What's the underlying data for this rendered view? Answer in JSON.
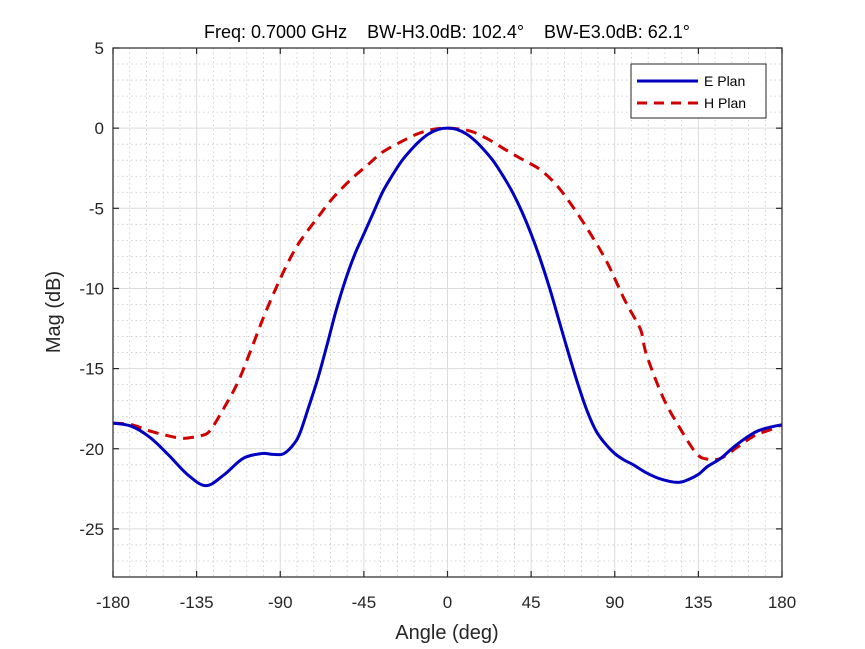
{
  "chart_data": {
    "type": "line",
    "title": "Freq: 0.7000 GHz    BW-H3.0dB: 102.4°    BW-E3.0dB: 62.1°",
    "xlabel": "Angle (deg)",
    "ylabel": "Mag (dB)",
    "xlim": [
      -180,
      180
    ],
    "ylim": [
      -28,
      5
    ],
    "xticks": [
      -180,
      -135,
      -90,
      -45,
      0,
      45,
      90,
      135,
      180
    ],
    "yticks": [
      5,
      0,
      -5,
      -10,
      -15,
      -20,
      -25
    ],
    "xtick_labels": [
      "-180",
      "-135",
      "-90",
      "-45",
      "0",
      "45",
      "90",
      "135",
      "180"
    ],
    "ytick_labels": [
      "5",
      "0",
      "-5",
      "-10",
      "-15",
      "-20",
      "-25"
    ],
    "grid": true,
    "minor_grid": true,
    "legend_position": "top-right",
    "series": [
      {
        "name": "E Plan",
        "color": "#0000C0",
        "style": "solid",
        "x": [
          -180,
          -170,
          -160,
          -150,
          -140,
          -130,
          -120,
          -110,
          -100,
          -94,
          -88,
          -82,
          -79,
          -75,
          -70,
          -65,
          -60,
          -55,
          -50,
          -45,
          -40,
          -35,
          -30,
          -25,
          -20,
          -15,
          -10,
          -5,
          0,
          5,
          10,
          15,
          20,
          25,
          30,
          35,
          40,
          45,
          50,
          55,
          60,
          65,
          70,
          75,
          80,
          85,
          90,
          95,
          100,
          107,
          115,
          124,
          130,
          135,
          140,
          147,
          155,
          165,
          172,
          180
        ],
        "y": [
          -18.4,
          -18.6,
          -19.3,
          -20.4,
          -21.6,
          -22.3,
          -21.6,
          -20.6,
          -20.3,
          -20.35,
          -20.3,
          -19.6,
          -18.9,
          -17.5,
          -15.7,
          -13.6,
          -11.4,
          -9.5,
          -7.9,
          -6.6,
          -5.3,
          -4.0,
          -3.0,
          -2.1,
          -1.4,
          -0.8,
          -0.35,
          -0.08,
          0,
          -0.08,
          -0.35,
          -0.8,
          -1.4,
          -2.1,
          -3.0,
          -4.0,
          -5.2,
          -6.6,
          -8.2,
          -10.0,
          -12.0,
          -14.0,
          -15.9,
          -17.6,
          -18.9,
          -19.7,
          -20.3,
          -20.7,
          -21.0,
          -21.5,
          -21.9,
          -22.1,
          -21.9,
          -21.6,
          -21.1,
          -20.6,
          -19.8,
          -19.0,
          -18.7,
          -18.5
        ]
      },
      {
        "name": "H Plan",
        "color": "#D00000",
        "style": "dashed",
        "x": [
          -180,
          -170,
          -160,
          -150,
          -143,
          -138,
          -133,
          -128,
          -121,
          -113,
          -106,
          -99,
          -92,
          -85,
          -79,
          -70,
          -62,
          -52,
          -43,
          -35,
          -25,
          -16,
          -8,
          0,
          8,
          14,
          22,
          32,
          41,
          50,
          59,
          68,
          77,
          86,
          94,
          98,
          104,
          107,
          116,
          125,
          134,
          140,
          147,
          156,
          165,
          174,
          180
        ],
        "y": [
          -18.4,
          -18.5,
          -18.9,
          -19.2,
          -19.35,
          -19.3,
          -19.2,
          -18.9,
          -17.6,
          -15.9,
          -13.9,
          -11.8,
          -9.9,
          -8.2,
          -7.0,
          -5.6,
          -4.4,
          -3.2,
          -2.3,
          -1.5,
          -0.85,
          -0.35,
          -0.08,
          0,
          -0.08,
          -0.25,
          -0.7,
          -1.4,
          -2.0,
          -2.6,
          -3.6,
          -5.0,
          -6.6,
          -8.4,
          -10.4,
          -11.3,
          -12.6,
          -14.1,
          -16.8,
          -18.7,
          -20.3,
          -20.65,
          -20.6,
          -19.9,
          -19.2,
          -18.8,
          -18.5
        ]
      }
    ]
  }
}
